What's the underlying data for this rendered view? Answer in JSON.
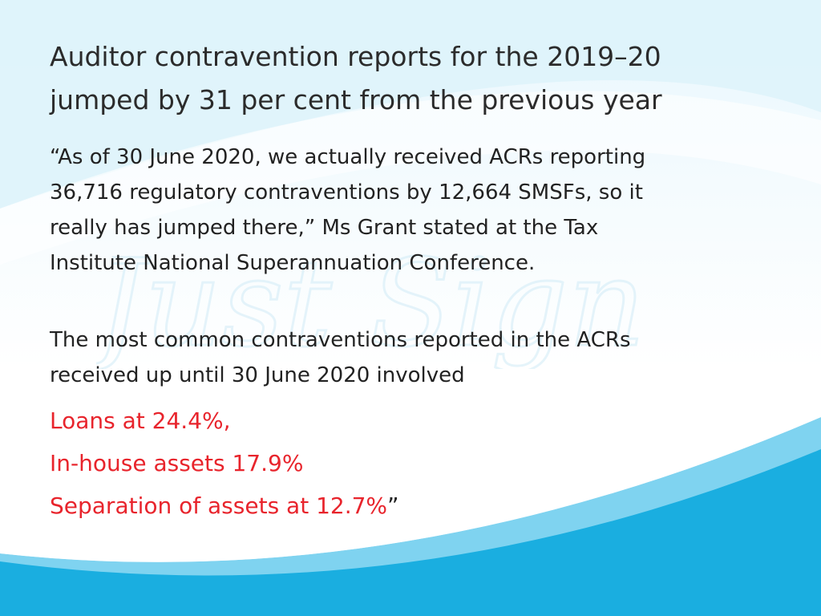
{
  "slide": {
    "title_lines": [
      "Auditor contravention reports for the 2019–20",
      "jumped by 31 per cent from the previous year"
    ],
    "quote_lines": [
      "“As of 30 June 2020, we actually received ACRs reporting",
      "36,716 regulatory contraventions by 12,664 SMSFs, so it",
      "really has jumped there,” Ms Grant stated at the Tax",
      "Institute National Superannuation Conference."
    ],
    "intro_lines": [
      "The most common contraventions reported in the ACRs",
      "received up until 30 June 2020 involved"
    ],
    "stats": [
      "Loans at 24.4%,",
      "In-house assets 17.9%",
      "Separation of assets at 12.7%"
    ],
    "closing_quote_mark": "”",
    "watermark_text": "Just Sign"
  },
  "colors": {
    "body_text": "#222222",
    "title_text": "#2b2b2b",
    "highlight": "#e8242c",
    "wave_dark": "#1aaee0",
    "wave_light": "#7fd3f0",
    "watermark": "#cdeaf6"
  }
}
